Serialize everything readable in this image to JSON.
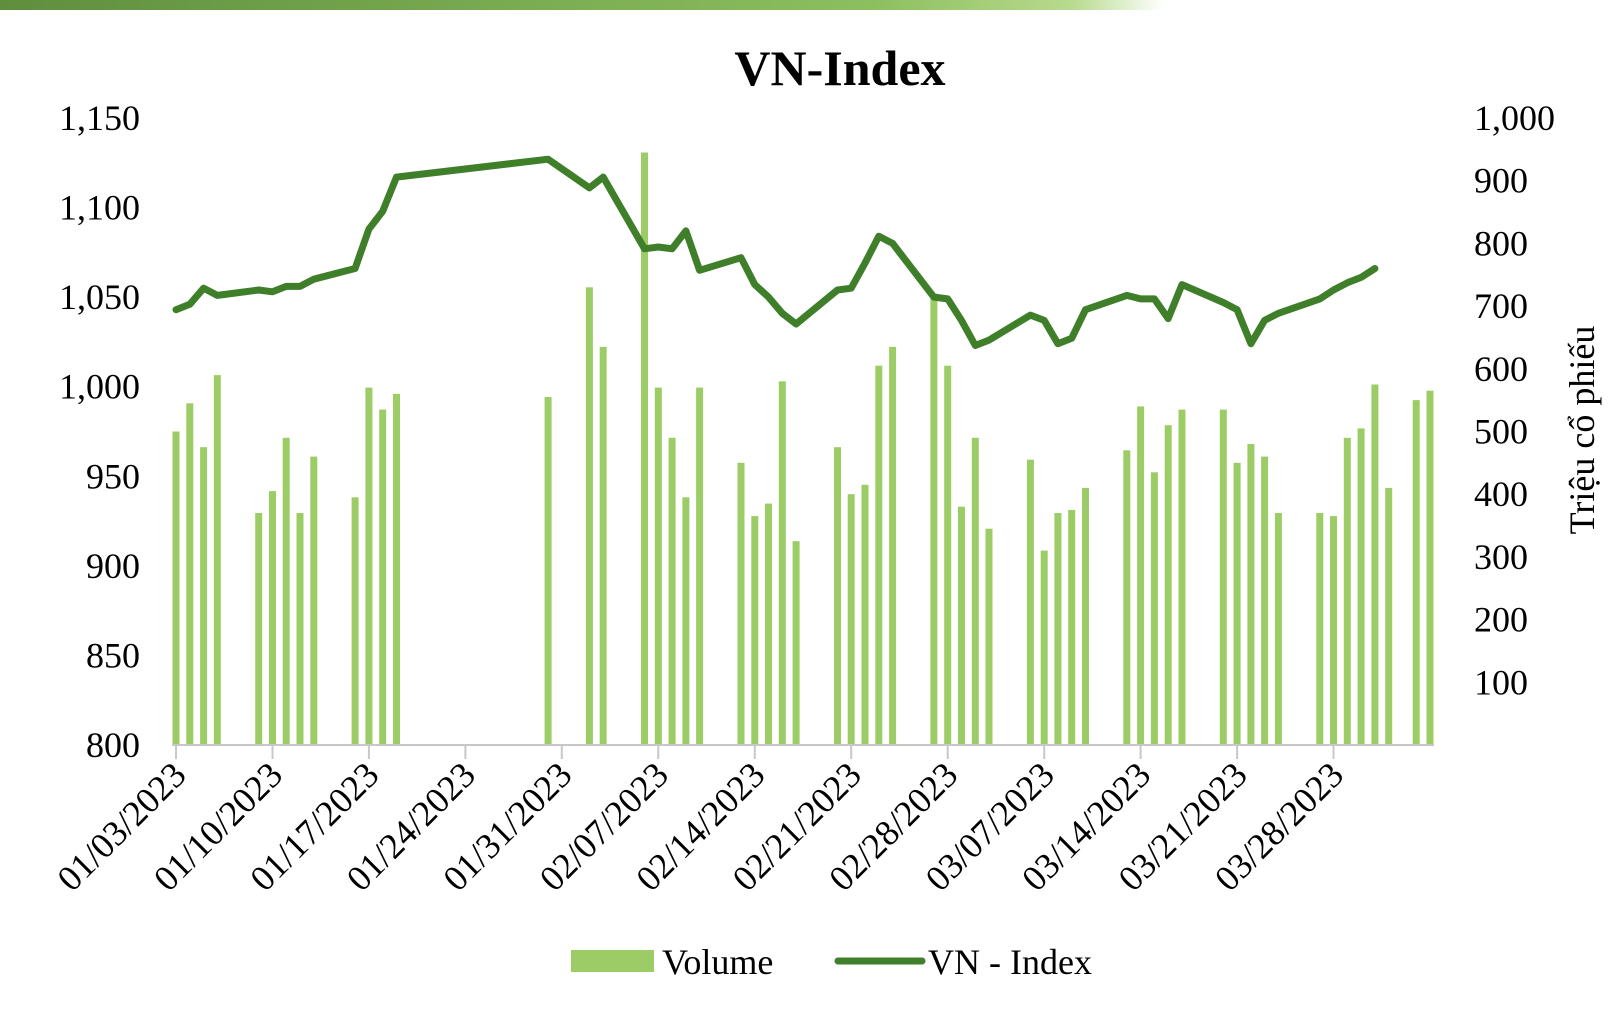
{
  "chart_data": {
    "type": "bar+line",
    "title": "VN-Index",
    "ylabel_right": "Triệu cổ phiếu",
    "y_left": {
      "min": 800,
      "max": 1150,
      "ticks": [
        800,
        850,
        900,
        950,
        1000,
        1050,
        1100,
        1150
      ]
    },
    "y_right": {
      "min": 0,
      "max": 1000,
      "ticks": [
        100,
        200,
        300,
        400,
        500,
        600,
        700,
        800,
        900,
        1000
      ]
    },
    "x_range": [
      "01/03/2023",
      "04/04/2023"
    ],
    "x_tick_labels": [
      "01/03/2023",
      "01/10/2023",
      "01/17/2023",
      "01/24/2023",
      "01/31/2023",
      "02/07/2023",
      "02/14/2023",
      "02/21/2023",
      "02/28/2023",
      "03/07/2023",
      "03/14/2023",
      "03/21/2023",
      "03/28/2023"
    ],
    "series": [
      {
        "name": "Volume",
        "type": "bar",
        "axis": "right",
        "color": "#9ccc65",
        "points": [
          [
            "01/03/2023",
            500
          ],
          [
            "01/04/2023",
            545
          ],
          [
            "01/05/2023",
            475
          ],
          [
            "01/06/2023",
            590
          ],
          [
            "01/09/2023",
            370
          ],
          [
            "01/10/2023",
            405
          ],
          [
            "01/11/2023",
            490
          ],
          [
            "01/12/2023",
            370
          ],
          [
            "01/13/2023",
            460
          ],
          [
            "01/16/2023",
            395
          ],
          [
            "01/17/2023",
            570
          ],
          [
            "01/18/2023",
            535
          ],
          [
            "01/19/2023",
            560
          ],
          [
            "01/30/2023",
            555
          ],
          [
            "02/02/2023",
            730
          ],
          [
            "02/03/2023",
            635
          ],
          [
            "02/06/2023",
            945
          ],
          [
            "02/07/2023",
            570
          ],
          [
            "02/08/2023",
            490
          ],
          [
            "02/09/2023",
            395
          ],
          [
            "02/10/2023",
            570
          ],
          [
            "02/13/2023",
            450
          ],
          [
            "02/14/2023",
            365
          ],
          [
            "02/15/2023",
            385
          ],
          [
            "02/16/2023",
            580
          ],
          [
            "02/17/2023",
            325
          ],
          [
            "02/20/2023",
            475
          ],
          [
            "02/21/2023",
            400
          ],
          [
            "02/22/2023",
            415
          ],
          [
            "02/23/2023",
            605
          ],
          [
            "02/24/2023",
            635
          ],
          [
            "02/27/2023",
            720
          ],
          [
            "02/28/2023",
            605
          ],
          [
            "03/01/2023",
            380
          ],
          [
            "03/02/2023",
            490
          ],
          [
            "03/03/2023",
            345
          ],
          [
            "03/06/2023",
            455
          ],
          [
            "03/07/2023",
            310
          ],
          [
            "03/08/2023",
            370
          ],
          [
            "03/09/2023",
            375
          ],
          [
            "03/10/2023",
            410
          ],
          [
            "03/13/2023",
            470
          ],
          [
            "03/14/2023",
            540
          ],
          [
            "03/15/2023",
            435
          ],
          [
            "03/16/2023",
            510
          ],
          [
            "03/17/2023",
            535
          ],
          [
            "03/20/2023",
            535
          ],
          [
            "03/21/2023",
            450
          ],
          [
            "03/22/2023",
            480
          ],
          [
            "03/23/2023",
            460
          ],
          [
            "03/24/2023",
            370
          ],
          [
            "03/27/2023",
            370
          ],
          [
            "03/28/2023",
            365
          ],
          [
            "03/29/2023",
            490
          ],
          [
            "03/30/2023",
            505
          ],
          [
            "03/31/2023",
            575
          ],
          [
            "04/01/2023",
            410
          ],
          [
            "04/03/2023",
            550
          ],
          [
            "04/04/2023",
            565
          ]
        ]
      },
      {
        "name": "VN - Index",
        "type": "line",
        "axis": "left",
        "color": "#3f7f2a",
        "points": [
          [
            "01/03/2023",
            1043
          ],
          [
            "01/04/2023",
            1046
          ],
          [
            "01/05/2023",
            1055
          ],
          [
            "01/06/2023",
            1051
          ],
          [
            "01/09/2023",
            1054
          ],
          [
            "01/10/2023",
            1053
          ],
          [
            "01/11/2023",
            1056
          ],
          [
            "01/12/2023",
            1056
          ],
          [
            "01/13/2023",
            1060
          ],
          [
            "01/16/2023",
            1066
          ],
          [
            "01/17/2023",
            1088
          ],
          [
            "01/18/2023",
            1098
          ],
          [
            "01/19/2023",
            1117
          ],
          [
            "01/30/2023",
            1127
          ],
          [
            "02/02/2023",
            1111
          ],
          [
            "02/03/2023",
            1117
          ],
          [
            "02/06/2023",
            1077
          ],
          [
            "02/07/2023",
            1078
          ],
          [
            "02/08/2023",
            1077
          ],
          [
            "02/09/2023",
            1087
          ],
          [
            "02/10/2023",
            1065
          ],
          [
            "02/13/2023",
            1072
          ],
          [
            "02/14/2023",
            1057
          ],
          [
            "02/15/2023",
            1050
          ],
          [
            "02/16/2023",
            1041
          ],
          [
            "02/17/2023",
            1035
          ],
          [
            "02/20/2023",
            1054
          ],
          [
            "02/21/2023",
            1055
          ],
          [
            "02/22/2023",
            1069
          ],
          [
            "02/23/2023",
            1084
          ],
          [
            "02/24/2023",
            1080
          ],
          [
            "02/27/2023",
            1050
          ],
          [
            "02/28/2023",
            1049
          ],
          [
            "03/01/2023",
            1037
          ],
          [
            "03/02/2023",
            1023
          ],
          [
            "03/03/2023",
            1026
          ],
          [
            "03/06/2023",
            1040
          ],
          [
            "03/07/2023",
            1037
          ],
          [
            "03/08/2023",
            1024
          ],
          [
            "03/09/2023",
            1027
          ],
          [
            "03/10/2023",
            1043
          ],
          [
            "03/13/2023",
            1051
          ],
          [
            "03/14/2023",
            1049
          ],
          [
            "03/15/2023",
            1049
          ],
          [
            "03/16/2023",
            1038
          ],
          [
            "03/17/2023",
            1057
          ],
          [
            "03/20/2023",
            1047
          ],
          [
            "03/21/2023",
            1043
          ],
          [
            "03/22/2023",
            1024
          ],
          [
            "03/23/2023",
            1037
          ],
          [
            "03/24/2023",
            1041
          ],
          [
            "03/27/2023",
            1049
          ],
          [
            "03/28/2023",
            1054
          ],
          [
            "03/29/2023",
            1058
          ],
          [
            "03/30/2023",
            1061
          ],
          [
            "03/31/2023",
            1066
          ]
        ]
      }
    ],
    "legend": {
      "position": "bottom",
      "entries": [
        "Volume",
        "VN - Index"
      ]
    },
    "grid": false
  }
}
